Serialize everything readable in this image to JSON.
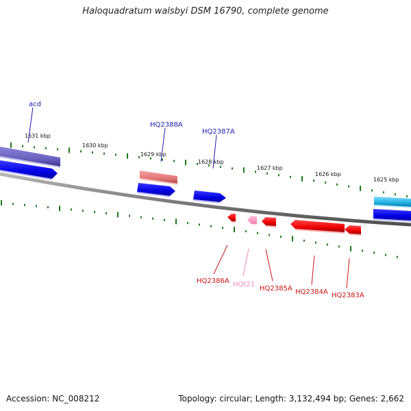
{
  "title": "Haloquadratum walsbyi DSM 16790, complete genome",
  "footer": {
    "accession": "Accession: NC_008212",
    "stats": "Topology: circular; Length: 3,132,494 bp; Genes: 2,662"
  },
  "scale_labels": [
    "1631 kbp",
    "1630 kbp",
    "1629 kbp",
    "1628 kbp",
    "1627 kbp",
    "1626 kbp",
    "1625 kbp"
  ],
  "gene_labels": {
    "top": [
      "acd",
      "HQ2388A",
      "HQ2387A"
    ],
    "bottom": [
      "HQ2386A",
      "HQt21",
      "HQ2385A",
      "HQ2384A",
      "HQ2383A"
    ]
  },
  "colors": {
    "backbone": "#808080",
    "tick": "#1a7a1a",
    "top_label": "#1a1aaa",
    "bottom_label": "#cc1111",
    "trna_label": "#ee88bb",
    "cds_blue": "#0000ee",
    "cds_red": "#ee0000",
    "trna_pink": "#ff99cc",
    "feature_purple": "#6f68c4",
    "feature_salmon": "#ea7f7f",
    "feature_cyan": "#2ab6e4"
  }
}
